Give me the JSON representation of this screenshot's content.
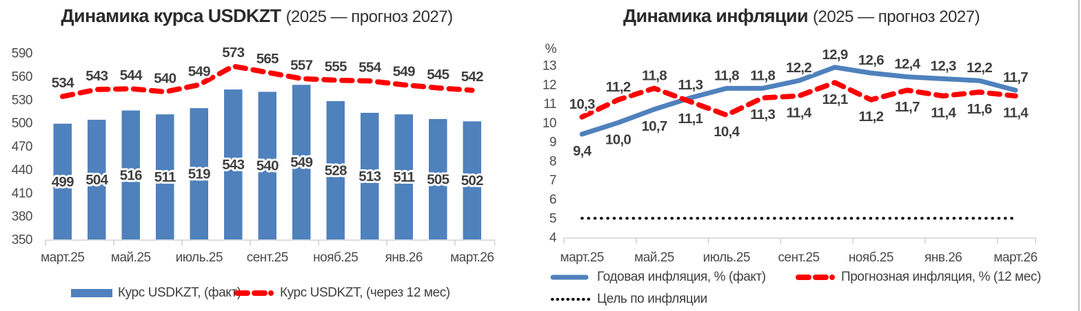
{
  "canvas": {
    "background": "#ffffff",
    "right_edge_color": "#bdbdbd"
  },
  "chart_data": [
    {
      "type": "bar",
      "title_main": "Динамика курса USDKZT",
      "title_note": "(2025 — прогноз 2027)",
      "y_axis": {
        "min": 350,
        "max": 590,
        "step": 30,
        "unit": "",
        "ticks": [
          350,
          380,
          410,
          440,
          470,
          500,
          530,
          560,
          590
        ]
      },
      "x_tick_labels": [
        "март.25",
        "май.25",
        "июль.25",
        "сент.25",
        "нояб.25",
        "янв.26",
        "март.26"
      ],
      "grid": false,
      "legend_position": "bottom",
      "series": [
        {
          "name": "Курс USDKZT, (факт)",
          "kind": "bar",
          "color": "#4f81bd",
          "value_format": "int",
          "label_placement": "center",
          "values": [
            499,
            504,
            516,
            511,
            519,
            543,
            540,
            549,
            528,
            513,
            511,
            505,
            502
          ]
        },
        {
          "name": "Курс USDKZT, (через 12 мес)",
          "kind": "line-dashed",
          "color": "#fe0000",
          "value_format": "int",
          "label_placement": "above",
          "values": [
            534,
            543,
            544,
            540,
            549,
            573,
            565,
            557,
            555,
            554,
            549,
            545,
            542
          ]
        }
      ]
    },
    {
      "type": "line",
      "title_main": "Динамика инфляции",
      "title_note": "(2025 — прогноз 2027)",
      "y_axis": {
        "min": 4,
        "max": 13,
        "step": 1,
        "unit": "%",
        "ticks": [
          4,
          5,
          6,
          7,
          8,
          9,
          10,
          11,
          12,
          13
        ]
      },
      "x_tick_labels": [
        "март.25",
        "май.25",
        "июль.25",
        "сент.25",
        "нояб.25",
        "янв.26",
        "март.26"
      ],
      "grid": false,
      "legend_position": "bottom",
      "series": [
        {
          "name": "Годовая инфляция, % (факт)",
          "kind": "line",
          "color": "#4f81bd",
          "value_format": "dec1",
          "label_placement": [
            "below",
            "below",
            "below",
            "above",
            "above",
            "above",
            "above",
            "above",
            "above",
            "above",
            "above",
            "above",
            "above"
          ],
          "values": [
            9.4,
            10.0,
            10.7,
            11.3,
            11.8,
            11.8,
            12.2,
            12.9,
            12.6,
            12.4,
            12.3,
            12.2,
            11.7
          ]
        },
        {
          "name": "Прогнозная инфляция, % (12 мес)",
          "kind": "line-dashed",
          "color": "#fe0000",
          "value_format": "dec1",
          "label_placement": [
            "above",
            "above",
            "above",
            "below",
            "below",
            "below",
            "below",
            "below",
            "below",
            "below",
            "below",
            "below",
            "below"
          ],
          "values": [
            10.3,
            11.2,
            11.8,
            11.1,
            10.4,
            11.3,
            11.4,
            12.1,
            11.2,
            11.7,
            11.4,
            11.6,
            11.4
          ]
        },
        {
          "name": "Цель по инфляции",
          "kind": "line-dotted",
          "color": "#000000",
          "value_format": "none",
          "label_placement": "none",
          "values": [
            5,
            5,
            5,
            5,
            5,
            5,
            5,
            5,
            5,
            5,
            5,
            5,
            5
          ]
        }
      ]
    }
  ]
}
